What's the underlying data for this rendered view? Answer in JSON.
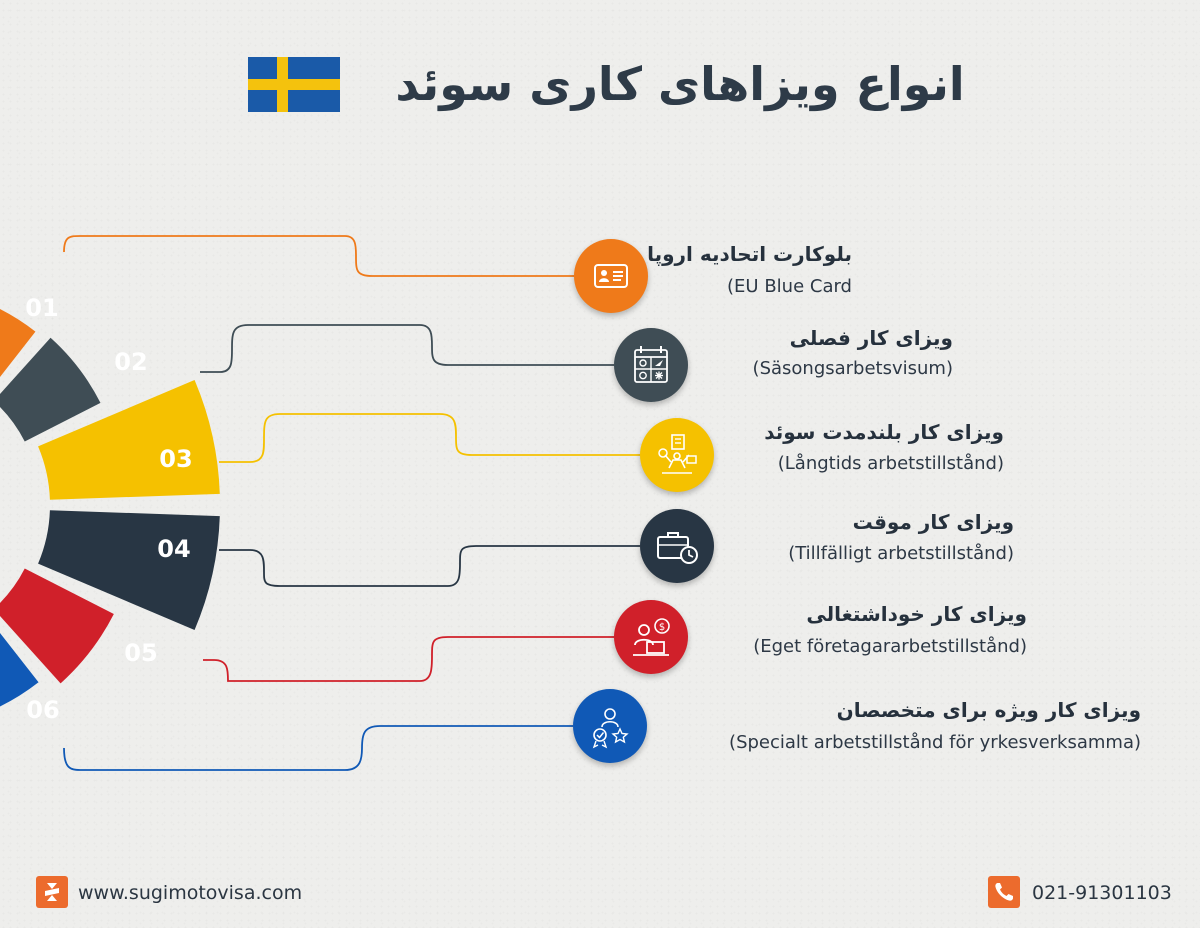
{
  "header": {
    "title": "انواع ویزاهای کاری سوئد",
    "flag_colors": {
      "field": "#1a5aa8",
      "cross": "#f4c20d"
    }
  },
  "items": [
    {
      "number": "01",
      "title": "بلوکارت اتحادیه اروپا",
      "subtitle": "(EU Blue Card",
      "icon": "id-card-icon",
      "color": "#ef7a1a"
    },
    {
      "number": "02",
      "title": "ویزای کار فصلی",
      "subtitle": "(Säsongsarbetsvisum)",
      "icon": "seasons-calendar-icon",
      "color": "#3f4d55"
    },
    {
      "number": "03",
      "title": "ویزای کار بلندمدت سوئد",
      "subtitle": "(Långtids arbetstillstånd)",
      "icon": "long-term-work-icon",
      "color": "#f5c100"
    },
    {
      "number": "04",
      "title": "ویزای کار موقت",
      "subtitle": "(Tillfälligt arbetstillstånd)",
      "icon": "briefcase-clock-icon",
      "color": "#283644"
    },
    {
      "number": "05",
      "title": "ویزای کار خوداشتغالی",
      "subtitle": "(Eget företagararbetstillstånd)",
      "icon": "entrepreneur-icon",
      "color": "#d0202a"
    },
    {
      "number": "06",
      "title": "ویزای کار ویژه برای متخصصان",
      "subtitle": "(Specialt arbetstillstånd för yrkesverksamma)",
      "icon": "expert-award-icon",
      "color": "#1059b6"
    }
  ],
  "footer": {
    "website": "www.sugimotovisa.com",
    "phone": "021-91301103",
    "logo_icon": "sugimoto-logo-icon",
    "phone_icon": "phone-icon",
    "accent": "#ec6b2d"
  }
}
